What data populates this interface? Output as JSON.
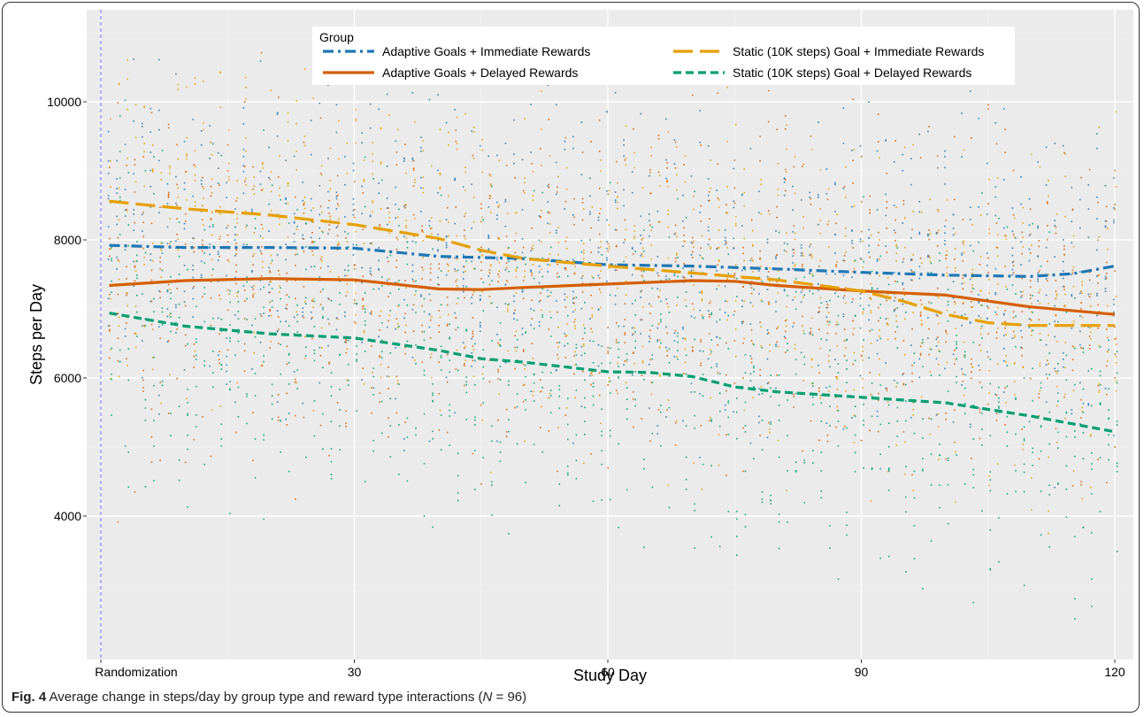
{
  "chart_data": {
    "type": "line",
    "title": "",
    "xlabel": "Study Day",
    "ylabel": "Steps per Day",
    "xlim": [
      0,
      121
    ],
    "ylim": [
      2300,
      11000
    ],
    "grid": true,
    "legend_title": "Group",
    "legend_position": "top-center",
    "x_ticks": [
      {
        "value": 0,
        "label": "Randomization"
      },
      {
        "value": 30,
        "label": "30"
      },
      {
        "value": 60,
        "label": "60"
      },
      {
        "value": 90,
        "label": "90"
      },
      {
        "value": 120,
        "label": "120"
      }
    ],
    "y_ticks": [
      {
        "value": 4000,
        "label": "4000"
      },
      {
        "value": 6000,
        "label": "6000"
      },
      {
        "value": 8000,
        "label": "8000"
      },
      {
        "value": 10000,
        "label": "10000"
      }
    ],
    "reference_line": {
      "x": 0,
      "color": "#6a6aff",
      "style": "dashed"
    },
    "series": [
      {
        "name": "Adaptive Goals + Immediate Rewards",
        "color": "#1f77b4",
        "dash": "dashdot",
        "x": [
          1,
          10,
          20,
          30,
          40,
          50,
          60,
          70,
          80,
          90,
          100,
          110,
          115,
          120
        ],
        "y": [
          7920,
          7890,
          7890,
          7880,
          7760,
          7730,
          7640,
          7620,
          7580,
          7530,
          7490,
          7470,
          7510,
          7620
        ]
      },
      {
        "name": "Adaptive Goals + Delayed Rewards",
        "color": "#d55e00",
        "dash": "solid",
        "x": [
          1,
          10,
          20,
          30,
          40,
          45,
          50,
          60,
          70,
          75,
          80,
          90,
          100,
          110,
          120
        ],
        "y": [
          7340,
          7410,
          7440,
          7420,
          7290,
          7280,
          7310,
          7360,
          7410,
          7400,
          7340,
          7260,
          7200,
          7030,
          6920
        ]
      },
      {
        "name": "Static (10K steps) Goal + Immediate Rewards",
        "color": "#e69f00",
        "dash": "longdash",
        "x": [
          1,
          10,
          20,
          30,
          40,
          45,
          50,
          60,
          70,
          80,
          90,
          95,
          100,
          105,
          110,
          120
        ],
        "y": [
          8560,
          8450,
          8360,
          8220,
          8020,
          7850,
          7730,
          7620,
          7520,
          7420,
          7260,
          7110,
          6920,
          6800,
          6760,
          6760
        ]
      },
      {
        "name": "Static (10K steps) Goal + Delayed Rewards",
        "color": "#009e73",
        "dash": "dashed",
        "x": [
          1,
          10,
          20,
          30,
          40,
          45,
          50,
          60,
          65,
          70,
          75,
          80,
          90,
          100,
          110,
          120
        ],
        "y": [
          6940,
          6750,
          6640,
          6580,
          6400,
          6280,
          6230,
          6090,
          6080,
          6020,
          5870,
          5800,
          5720,
          5640,
          5450,
          5220
        ]
      }
    ]
  },
  "caption": {
    "label": "Fig. 4",
    "text": " Average change in steps/day by group type and reward type interactions (",
    "n_symbol": "N",
    "n_value": " = 96)"
  }
}
